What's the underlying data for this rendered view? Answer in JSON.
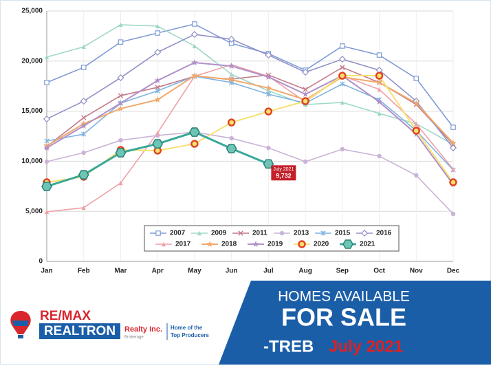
{
  "chart_data": {
    "type": "line",
    "categories": [
      "Jan",
      "Feb",
      "Mar",
      "Apr",
      "May",
      "Jun",
      "Jul",
      "Aug",
      "Sep",
      "Oct",
      "Nov",
      "Dec"
    ],
    "ylim": [
      0,
      25000
    ],
    "yticks": [
      0,
      {
        "value": 5000,
        "label": "5,000"
      },
      {
        "value": 10000,
        "label": "10,000"
      },
      {
        "value": 15000,
        "label": "15,000"
      },
      {
        "value": 20000,
        "label": "20,000"
      },
      {
        "value": 25000,
        "label": "25,000"
      }
    ],
    "grid": true,
    "legend": "bottom",
    "series": [
      {
        "name": "2007",
        "color": "#7f9bd6",
        "marker": "square",
        "values": [
          17860,
          19370,
          21900,
          22800,
          23700,
          21770,
          20740,
          19090,
          21500,
          20600,
          18270,
          13390
        ]
      },
      {
        "name": "2009",
        "color": "#9fd8c8",
        "marker": "triangle",
        "values": [
          20400,
          21430,
          23630,
          23490,
          21500,
          18680,
          17030,
          15660,
          15870,
          14770,
          13740,
          11680
        ]
      },
      {
        "name": "2011",
        "color": "#c47a8a",
        "marker": "x",
        "values": [
          11470,
          14350,
          16550,
          17380,
          18480,
          18200,
          18610,
          17170,
          19370,
          17860,
          15660,
          11680
        ]
      },
      {
        "name": "2013",
        "color": "#c9b3d6",
        "marker": "circle",
        "values": [
          9960,
          10850,
          12090,
          12570,
          12910,
          12290,
          11330,
          9960,
          11200,
          10510,
          8590,
          4740
        ]
      },
      {
        "name": "2015",
        "color": "#7fb3e0",
        "marker": "asterisk",
        "values": [
          12020,
          12710,
          15800,
          17030,
          18480,
          17860,
          16690,
          15800,
          17720,
          16140,
          13050,
          9130
        ]
      },
      {
        "name": "2016",
        "color": "#9090c8",
        "marker": "diamond",
        "values": [
          14220,
          16000,
          18340,
          20880,
          22660,
          22180,
          20600,
          18890,
          20190,
          19090,
          16000,
          11330
        ]
      },
      {
        "name": "2017",
        "color": "#f0a0a8",
        "marker": "triangle",
        "values": [
          4950,
          5360,
          7830,
          12840,
          18480,
          19640,
          18480,
          15930,
          18540,
          17170,
          13740,
          9200
        ]
      },
      {
        "name": "2018",
        "color": "#f2a96b",
        "marker": "star",
        "values": [
          11540,
          13740,
          15250,
          16140,
          18540,
          18130,
          17310,
          16140,
          18410,
          17860,
          15800,
          11810
        ]
      },
      {
        "name": "2019",
        "color": "#b090c8",
        "marker": "star",
        "values": [
          11330,
          13530,
          15800,
          18060,
          19850,
          19500,
          18410,
          16690,
          18540,
          15930,
          12710,
          7690
        ]
      },
      {
        "name": "2020",
        "color": "#f8e070",
        "marker": "ring",
        "values": [
          7900,
          8450,
          11130,
          11060,
          11740,
          13870,
          14970,
          16000,
          18540,
          18540,
          13050,
          7900
        ]
      },
      {
        "name": "2021",
        "color": "#3aa89a",
        "marker": "hexagon",
        "values": [
          7490,
          8650,
          10850,
          11740,
          12910,
          11260,
          9732,
          null,
          null,
          null,
          null,
          null
        ],
        "value_labels": [
          null,
          null,
          null,
          null,
          null,
          null,
          "9,732",
          null,
          null,
          null,
          null,
          null
        ]
      }
    ],
    "annotation": {
      "text": "July 2021"
    }
  },
  "banner": {
    "line1": "HOMES AVAILABLE",
    "line2": "FOR SALE",
    "line3a": "-TREB",
    "line3b": "July 2021"
  },
  "logo": {
    "brand": "RE/MAX",
    "office": "REALTRON",
    "realty": "Realty Inc.",
    "brokerage": "Brokerage",
    "tagline1": "Home of the",
    "tagline2": "Top Producers"
  }
}
